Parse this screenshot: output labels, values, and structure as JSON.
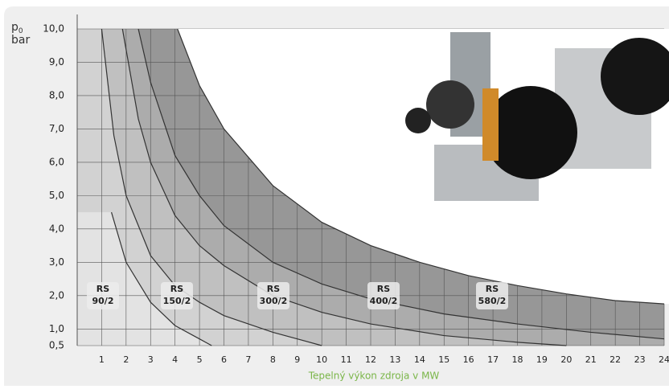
{
  "chart_data": {
    "type": "line",
    "y_label": "p",
    "y_label_sub": "0",
    "y_unit": "bar",
    "x_label": "Tepelný výkon zdroja v MW",
    "xlim": [
      0,
      24
    ],
    "xticks": [
      1,
      2,
      3,
      4,
      5,
      6,
      7,
      8,
      9,
      10,
      11,
      12,
      13,
      14,
      15,
      16,
      17,
      18,
      19,
      20,
      21,
      22,
      23,
      24
    ],
    "ylim": [
      0.5,
      10
    ],
    "yticks": [
      {
        "value": 0.5,
        "label": "0,5"
      },
      {
        "value": 1,
        "label": "1,0"
      },
      {
        "value": 2,
        "label": "2,0"
      },
      {
        "value": 3,
        "label": "3,0"
      },
      {
        "value": 4,
        "label": "4,0"
      },
      {
        "value": 5,
        "label": "5,0"
      },
      {
        "value": 6,
        "label": "6,0"
      },
      {
        "value": 7,
        "label": "7,0"
      },
      {
        "value": 8,
        "label": "8,0"
      },
      {
        "value": 9,
        "label": "9,0"
      },
      {
        "value": 10,
        "label": "10,0"
      }
    ],
    "grid": true,
    "series": [
      {
        "label_lines": [
          "RS",
          "90/2"
        ],
        "color": "#e3e3e3",
        "x": [
          1.4,
          2,
          3,
          4,
          5,
          5.5
        ],
        "values": [
          4.5,
          3.0,
          1.8,
          1.1,
          0.7,
          0.5
        ]
      },
      {
        "label_lines": [
          "RS",
          "150/2"
        ],
        "color": "#d2d2d2",
        "x": [
          1.0,
          1.5,
          2,
          3,
          4,
          5,
          6,
          8,
          10
        ],
        "values": [
          10,
          6.8,
          5.0,
          3.2,
          2.3,
          1.8,
          1.4,
          0.9,
          0.5
        ]
      },
      {
        "label_lines": [
          "RS",
          "300/2"
        ],
        "color": "#c0c0c0",
        "x": [
          1.85,
          2.5,
          3,
          4,
          5,
          6,
          8,
          10,
          12,
          15,
          18,
          20
        ],
        "values": [
          10,
          7.3,
          6.0,
          4.4,
          3.5,
          2.9,
          2.0,
          1.5,
          1.15,
          0.8,
          0.6,
          0.5
        ]
      },
      {
        "label_lines": [
          "RS",
          "400/2"
        ],
        "color": "#acacac",
        "x": [
          2.5,
          3,
          4,
          5,
          6,
          8,
          10,
          12,
          15,
          18,
          21,
          24
        ],
        "values": [
          10,
          8.4,
          6.2,
          5.0,
          4.1,
          3.0,
          2.35,
          1.9,
          1.45,
          1.15,
          0.9,
          0.7
        ]
      },
      {
        "label_lines": [
          "RS",
          "580/2"
        ],
        "color": "#979797",
        "x": [
          4.1,
          5,
          6,
          8,
          10,
          12,
          14,
          16,
          18,
          20,
          22,
          24
        ],
        "values": [
          10,
          8.3,
          7.0,
          5.3,
          4.2,
          3.5,
          3.0,
          2.6,
          2.3,
          2.05,
          1.85,
          1.75
        ]
      }
    ]
  }
}
